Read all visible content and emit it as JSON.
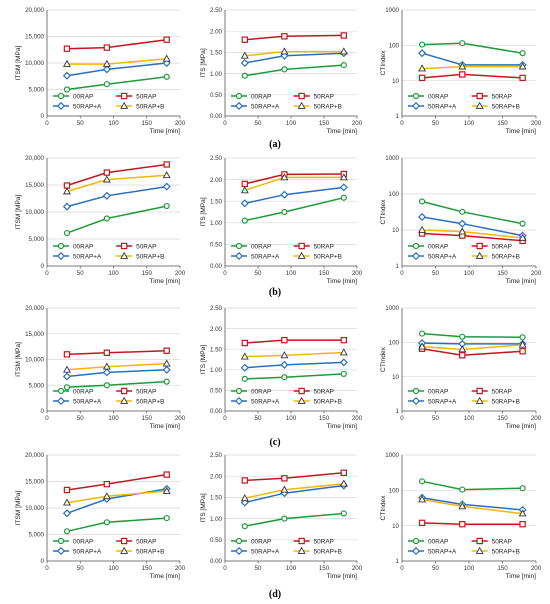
{
  "palette": {
    "00RAP": "#1f9a3a",
    "50RAP": "#c0181e",
    "50RAP+A": "#2a6fbd",
    "50RAP+B": "#f2b705"
  },
  "row_labels": [
    "(a)",
    "(b)",
    "(c)",
    "(d)"
  ],
  "chart_data": [
    {
      "id": "a1",
      "type": "line",
      "ylabel": "ITSM [MPa]",
      "xlabel": "Time [min]",
      "xlim": [
        0,
        200
      ],
      "xticks": [
        0,
        50,
        100,
        150,
        200
      ],
      "ylim": [
        0,
        20000
      ],
      "yticks": [
        0,
        5000,
        10000,
        15000,
        20000
      ],
      "ytick_labels": [
        "0",
        "5,000",
        "10,000",
        "15,000",
        "20,000"
      ],
      "yscale": "linear",
      "x": [
        30,
        90,
        180
      ],
      "series": [
        {
          "name": "00RAP",
          "values": [
            5000,
            6000,
            7400
          ]
        },
        {
          "name": "50RAP",
          "values": [
            12700,
            12900,
            14400
          ]
        },
        {
          "name": "50RAP+A",
          "values": [
            7600,
            8800,
            10000
          ]
        },
        {
          "name": "50RAP+B",
          "values": [
            9800,
            9800,
            10800
          ]
        }
      ]
    },
    {
      "id": "a2",
      "type": "line",
      "ylabel": "ITS [MPa]",
      "xlabel": "Time [min]",
      "xlim": [
        0,
        200
      ],
      "xticks": [
        0,
        50,
        100,
        150,
        200
      ],
      "ylim": [
        0,
        2.5
      ],
      "yticks": [
        0,
        0.5,
        1,
        1.5,
        2,
        2.5
      ],
      "ytick_labels": [
        "0.00",
        "0.50",
        "1.00",
        "1.50",
        "2.00",
        "2.50"
      ],
      "yscale": "linear",
      "x": [
        30,
        90,
        180
      ],
      "series": [
        {
          "name": "00RAP",
          "values": [
            0.95,
            1.1,
            1.2
          ]
        },
        {
          "name": "50RAP",
          "values": [
            1.8,
            1.88,
            1.9
          ]
        },
        {
          "name": "50RAP+A",
          "values": [
            1.25,
            1.42,
            1.48
          ]
        },
        {
          "name": "50RAP+B",
          "values": [
            1.42,
            1.52,
            1.52
          ]
        }
      ]
    },
    {
      "id": "a3",
      "type": "line",
      "ylabel": "CTIndex",
      "xlabel": "Time [min]",
      "xlim": [
        0,
        200
      ],
      "xticks": [
        0,
        50,
        100,
        150,
        200
      ],
      "ylim": [
        1,
        1000
      ],
      "yticks": [
        1,
        10,
        100,
        1000
      ],
      "ytick_labels": [
        "1",
        "10",
        "100",
        "1000"
      ],
      "yscale": "log",
      "x": [
        30,
        90,
        180
      ],
      "series": [
        {
          "name": "00RAP",
          "values": [
            105,
            115,
            60
          ]
        },
        {
          "name": "50RAP",
          "values": [
            12,
            15,
            12
          ]
        },
        {
          "name": "50RAP+A",
          "values": [
            60,
            28,
            28
          ]
        },
        {
          "name": "50RAP+B",
          "values": [
            22,
            25,
            25
          ]
        }
      ]
    },
    {
      "id": "b1",
      "type": "line",
      "ylabel": "ITSM [MPa]",
      "xlabel": "Time [min]",
      "xlim": [
        0,
        200
      ],
      "xticks": [
        0,
        50,
        100,
        150,
        200
      ],
      "ylim": [
        0,
        20000
      ],
      "yticks": [
        0,
        5000,
        10000,
        15000,
        20000
      ],
      "ytick_labels": [
        "0",
        "5,000",
        "10,000",
        "15,000",
        "20,000"
      ],
      "yscale": "linear",
      "x": [
        30,
        90,
        180
      ],
      "series": [
        {
          "name": "00RAP",
          "values": [
            6100,
            8800,
            11100
          ]
        },
        {
          "name": "50RAP",
          "values": [
            14900,
            17300,
            18800
          ]
        },
        {
          "name": "50RAP+A",
          "values": [
            11000,
            13000,
            14700
          ]
        },
        {
          "name": "50RAP+B",
          "values": [
            13800,
            16000,
            16800
          ]
        }
      ]
    },
    {
      "id": "b2",
      "type": "line",
      "ylabel": "ITS [MPa]",
      "xlabel": "Time [min]",
      "xlim": [
        0,
        200
      ],
      "xticks": [
        0,
        50,
        100,
        150,
        200
      ],
      "ylim": [
        0,
        2.5
      ],
      "yticks": [
        0,
        0.5,
        1,
        1.5,
        2,
        2.5
      ],
      "ytick_labels": [
        "0.00",
        "0.50",
        "1.00",
        "1.50",
        "2.00",
        "2.50"
      ],
      "yscale": "linear",
      "x": [
        30,
        90,
        180
      ],
      "series": [
        {
          "name": "00RAP",
          "values": [
            1.05,
            1.25,
            1.58
          ]
        },
        {
          "name": "50RAP",
          "values": [
            1.9,
            2.12,
            2.13
          ]
        },
        {
          "name": "50RAP+A",
          "values": [
            1.45,
            1.65,
            1.82
          ]
        },
        {
          "name": "50RAP+B",
          "values": [
            1.75,
            2.05,
            2.05
          ]
        }
      ]
    },
    {
      "id": "b3",
      "type": "line",
      "ylabel": "CTIndex",
      "xlabel": "Time [min]",
      "xlim": [
        0,
        200
      ],
      "xticks": [
        0,
        50,
        100,
        150,
        200
      ],
      "ylim": [
        1,
        1000
      ],
      "yticks": [
        1,
        10,
        100,
        1000
      ],
      "ytick_labels": [
        "1",
        "10",
        "100",
        "1000"
      ],
      "yscale": "log",
      "x": [
        30,
        90,
        180
      ],
      "series": [
        {
          "name": "00RAP",
          "values": [
            62,
            32,
            15
          ]
        },
        {
          "name": "50RAP",
          "values": [
            8,
            7,
            5
          ]
        },
        {
          "name": "50RAP+A",
          "values": [
            23,
            15,
            7
          ]
        },
        {
          "name": "50RAP+B",
          "values": [
            10,
            9,
            6
          ]
        }
      ]
    },
    {
      "id": "c1",
      "type": "line",
      "ylabel": "ITSM [MPa]",
      "xlabel": "Time [min]",
      "xlim": [
        0,
        200
      ],
      "xticks": [
        0,
        50,
        100,
        150,
        200
      ],
      "ylim": [
        0,
        20000
      ],
      "yticks": [
        0,
        5000,
        10000,
        15000,
        20000
      ],
      "ytick_labels": [
        "0",
        "5,000",
        "10,000",
        "15,000",
        "20,000"
      ],
      "yscale": "linear",
      "x": [
        30,
        90,
        180
      ],
      "series": [
        {
          "name": "00RAP",
          "values": [
            4600,
            5000,
            5700
          ]
        },
        {
          "name": "50RAP",
          "values": [
            11000,
            11300,
            11700
          ]
        },
        {
          "name": "50RAP+A",
          "values": [
            6700,
            7500,
            8000
          ]
        },
        {
          "name": "50RAP+B",
          "values": [
            8000,
            8600,
            9200
          ]
        }
      ]
    },
    {
      "id": "c2",
      "type": "line",
      "ylabel": "ITS [MPa]",
      "xlabel": "Time [min]",
      "xlim": [
        0,
        200
      ],
      "xticks": [
        0,
        50,
        100,
        150,
        200
      ],
      "ylim": [
        0,
        2.5
      ],
      "yticks": [
        0,
        0.5,
        1,
        1.5,
        2,
        2.5
      ],
      "ytick_labels": [
        "0.00",
        "0.50",
        "1.00",
        "1.50",
        "2.00",
        "2.50"
      ],
      "yscale": "linear",
      "x": [
        30,
        90,
        180
      ],
      "series": [
        {
          "name": "00RAP",
          "values": [
            0.78,
            0.82,
            0.9
          ]
        },
        {
          "name": "50RAP",
          "values": [
            1.65,
            1.72,
            1.72
          ]
        },
        {
          "name": "50RAP+A",
          "values": [
            1.05,
            1.12,
            1.18
          ]
        },
        {
          "name": "50RAP+B",
          "values": [
            1.32,
            1.35,
            1.42
          ]
        }
      ]
    },
    {
      "id": "c3",
      "type": "line",
      "ylabel": "CTIndex",
      "xlabel": "Time [min]",
      "xlim": [
        0,
        200
      ],
      "xticks": [
        0,
        50,
        100,
        150,
        200
      ],
      "ylim": [
        1,
        1000
      ],
      "yticks": [
        1,
        10,
        100,
        1000
      ],
      "ytick_labels": [
        "1",
        "10",
        "100",
        "1000"
      ],
      "yscale": "log",
      "x": [
        30,
        90,
        180
      ],
      "series": [
        {
          "name": "00RAP",
          "values": [
            180,
            145,
            140
          ]
        },
        {
          "name": "50RAP",
          "values": [
            65,
            42,
            55
          ]
        },
        {
          "name": "50RAP+A",
          "values": [
            95,
            90,
            90
          ]
        },
        {
          "name": "50RAP+B",
          "values": [
            75,
            62,
            85
          ]
        }
      ]
    },
    {
      "id": "d1",
      "type": "line",
      "ylabel": "ITSM [MPa]",
      "xlabel": "Time [min]",
      "xlim": [
        0,
        200
      ],
      "xticks": [
        0,
        50,
        100,
        150,
        200
      ],
      "ylim": [
        0,
        20000
      ],
      "yticks": [
        0,
        5000,
        10000,
        15000,
        20000
      ],
      "ytick_labels": [
        "0",
        "5,000",
        "10,000",
        "15,000",
        "20,000"
      ],
      "yscale": "linear",
      "x": [
        30,
        90,
        180
      ],
      "series": [
        {
          "name": "00RAP",
          "values": [
            5600,
            7300,
            8100
          ]
        },
        {
          "name": "50RAP",
          "values": [
            13400,
            14500,
            16300
          ]
        },
        {
          "name": "50RAP+A",
          "values": [
            9000,
            11700,
            13600
          ]
        },
        {
          "name": "50RAP+B",
          "values": [
            11000,
            12200,
            13200
          ]
        }
      ]
    },
    {
      "id": "d2",
      "type": "line",
      "ylabel": "ITS [MPa]",
      "xlabel": "Time [min]",
      "xlim": [
        0,
        200
      ],
      "xticks": [
        0,
        50,
        100,
        150,
        200
      ],
      "ylim": [
        0,
        2.5
      ],
      "yticks": [
        0,
        0.5,
        1,
        1.5,
        2,
        2.5
      ],
      "ytick_labels": [
        "0.00",
        "0.50",
        "1.00",
        "1.50",
        "2.00",
        "2.50"
      ],
      "yscale": "linear",
      "x": [
        30,
        90,
        180
      ],
      "series": [
        {
          "name": "00RAP",
          "values": [
            0.82,
            1.0,
            1.12
          ]
        },
        {
          "name": "50RAP",
          "values": [
            1.9,
            1.95,
            2.08
          ]
        },
        {
          "name": "50RAP+A",
          "values": [
            1.38,
            1.6,
            1.78
          ]
        },
        {
          "name": "50RAP+B",
          "values": [
            1.48,
            1.68,
            1.82
          ]
        }
      ]
    },
    {
      "id": "d3",
      "type": "line",
      "ylabel": "CTIndex",
      "xlabel": "Time [min]",
      "xlim": [
        0,
        200
      ],
      "xticks": [
        0,
        50,
        100,
        150,
        200
      ],
      "ylim": [
        1,
        1000
      ],
      "yticks": [
        1,
        10,
        100,
        1000
      ],
      "ytick_labels": [
        "1",
        "10",
        "100",
        "1000"
      ],
      "yscale": "log",
      "x": [
        30,
        90,
        180
      ],
      "series": [
        {
          "name": "00RAP",
          "values": [
            180,
            105,
            115
          ]
        },
        {
          "name": "50RAP",
          "values": [
            12,
            11,
            11
          ]
        },
        {
          "name": "50RAP+A",
          "values": [
            62,
            40,
            28
          ]
        },
        {
          "name": "50RAP+B",
          "values": [
            55,
            35,
            22
          ]
        }
      ]
    }
  ]
}
